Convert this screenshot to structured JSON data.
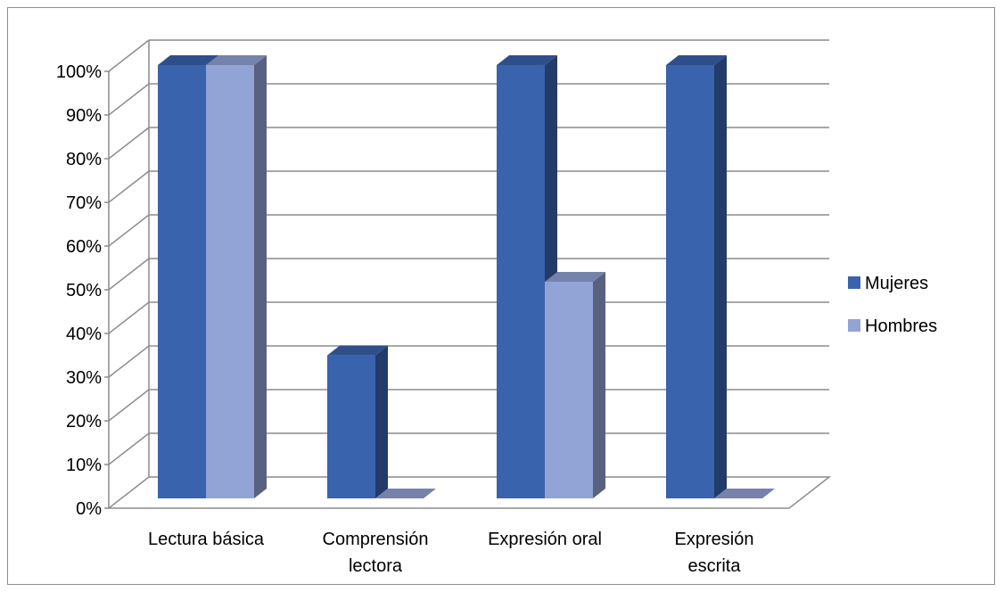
{
  "chart_data": {
    "type": "bar",
    "style": "3d-clustered-column",
    "categories": [
      "Lectura básica",
      "Comprensión lectora",
      "Expresión oral",
      "Expresión escrita"
    ],
    "series": [
      {
        "name": "Mujeres",
        "values": [
          100,
          33,
          100,
          100
        ],
        "color": "#3a63ad"
      },
      {
        "name": "Hombres",
        "values": [
          100,
          0,
          50,
          0
        ],
        "color": "#92a3d6"
      }
    ],
    "y_ticks": [
      "0%",
      "10%",
      "20%",
      "30%",
      "40%",
      "50%",
      "60%",
      "70%",
      "80%",
      "90%",
      "100%"
    ],
    "ylim": [
      0,
      100
    ],
    "grid": true,
    "legend": "right"
  }
}
